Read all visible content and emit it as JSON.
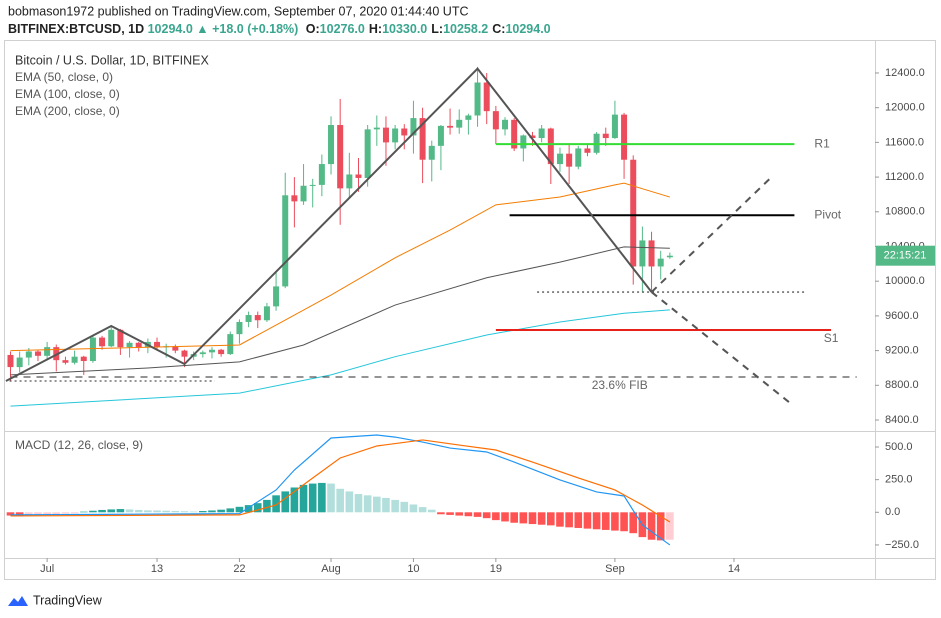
{
  "header": {
    "line1": "bobmason1972 published on TradingView.com, September 07, 2020 01:44:40 UTC",
    "symbol": "BITFINEX:BTCUSD, 1D",
    "price": "10294.0",
    "change": "▲ +18.0 (+0.18%)",
    "ohlc": [
      {
        "key": "O:",
        "value": "10276.0"
      },
      {
        "key": "H:",
        "value": "10330.0"
      },
      {
        "key": "L:",
        "value": "10258.2"
      },
      {
        "key": "C:",
        "value": "10294.0"
      }
    ]
  },
  "footer": {
    "brand": "TradingView"
  },
  "chart_data": [
    {
      "type": "candlestick",
      "title": "Bitcoin / U.S. Dollar, 1D, BITFINEX",
      "up_color": "#53b987",
      "down_color": "#eb4d5c",
      "countdown": "22:15:21",
      "badge_color": "#53b987",
      "x": [
        1,
        2,
        3,
        4,
        5,
        6,
        7,
        8,
        9,
        10,
        11,
        12,
        13,
        14,
        15,
        16,
        17,
        18,
        19,
        20,
        21,
        22,
        23,
        24,
        25,
        26,
        27,
        28,
        29,
        30,
        31,
        32,
        33,
        34,
        35,
        36,
        37,
        38,
        39,
        40,
        41,
        42,
        43,
        44,
        45,
        46,
        47,
        48,
        49,
        50,
        51,
        52,
        53,
        54,
        55,
        56,
        57,
        58,
        59,
        60,
        61,
        62,
        63,
        64,
        65,
        66,
        67,
        68,
        69,
        70,
        71,
        72,
        73
      ],
      "open": [
        9150,
        9010,
        9120,
        9190,
        9140,
        9240,
        9090,
        9060,
        9130,
        9080,
        9350,
        9250,
        9440,
        9240,
        9290,
        9240,
        9300,
        9240,
        9250,
        9200,
        9130,
        9160,
        9180,
        9210,
        9160,
        9390,
        9530,
        9610,
        9550,
        9710,
        9940,
        10990,
        10920,
        11100,
        11110,
        11350,
        11800,
        11070,
        11230,
        11190,
        11750,
        11770,
        11600,
        11760,
        11680,
        11880,
        11400,
        11560,
        11790,
        11770,
        11860,
        11910,
        12290,
        11960,
        11750,
        11860,
        11530,
        11680,
        11650,
        11760,
        11350,
        11470,
        11320,
        11530,
        11480,
        11700,
        11650,
        11920,
        11400,
        10170,
        10470,
        10170,
        10276
      ],
      "high": [
        9190,
        9190,
        9230,
        9210,
        9300,
        9270,
        9130,
        9200,
        9140,
        9380,
        9370,
        9480,
        9450,
        9310,
        9300,
        9340,
        9350,
        9280,
        9270,
        9210,
        9190,
        9200,
        9240,
        9220,
        9420,
        9560,
        9650,
        9650,
        9750,
        10100,
        11250,
        11200,
        11350,
        11180,
        11460,
        11900,
        12100,
        11480,
        11420,
        11800,
        11910,
        11900,
        11800,
        11810,
        12080,
        12000,
        11620,
        11800,
        11990,
        11980,
        11930,
        12470,
        12400,
        12020,
        11890,
        11880,
        11690,
        11720,
        11800,
        11770,
        11540,
        11590,
        11560,
        11590,
        11720,
        11770,
        12080,
        11940,
        11450,
        10630,
        10570,
        10350,
        10330
      ],
      "low": [
        8850,
        8950,
        9030,
        9080,
        9090,
        8960,
        9040,
        9040,
        8920,
        9060,
        9210,
        9240,
        9150,
        9120,
        9190,
        9170,
        9210,
        9120,
        9170,
        9010,
        9090,
        9120,
        9110,
        9130,
        9150,
        9280,
        9470,
        9460,
        9530,
        9660,
        9920,
        10620,
        10880,
        10850,
        10980,
        11230,
        10650,
        10950,
        11030,
        11090,
        11560,
        11330,
        11520,
        11520,
        11470,
        11130,
        11150,
        11280,
        11690,
        11700,
        11690,
        11780,
        11810,
        11580,
        11680,
        11500,
        11380,
        11560,
        11600,
        11120,
        11260,
        11120,
        11290,
        11440,
        11460,
        11560,
        11640,
        11180,
        9960,
        9870,
        9880,
        10020,
        10258.2
      ],
      "close": [
        9010,
        9120,
        9190,
        9140,
        9240,
        9090,
        9060,
        9130,
        9080,
        9350,
        9250,
        9440,
        9240,
        9290,
        9240,
        9300,
        9240,
        9250,
        9200,
        9130,
        9160,
        9180,
        9210,
        9160,
        9390,
        9530,
        9610,
        9550,
        9710,
        9940,
        10990,
        10920,
        11100,
        11110,
        11350,
        11800,
        11070,
        11230,
        11190,
        11750,
        11770,
        11600,
        11760,
        11680,
        11880,
        11400,
        11560,
        11790,
        11770,
        11860,
        11910,
        12290,
        11960,
        11750,
        11860,
        11530,
        11680,
        11650,
        11760,
        11350,
        11470,
        11320,
        11530,
        11480,
        11700,
        11650,
        11920,
        11400,
        10170,
        10470,
        10170,
        10260,
        10294
      ],
      "series": [
        {
          "name": "EMA (50, close, 0)",
          "color": "#f57c00",
          "x": [
            1,
            26,
            30,
            36,
            43,
            49,
            54,
            61,
            67,
            68,
            73
          ],
          "values": [
            9200,
            9265,
            9495,
            9840,
            10270,
            10590,
            10880,
            10970,
            11110,
            11130,
            10970
          ]
        },
        {
          "name": "EMA (100, close, 0)",
          "color": "#555555",
          "x": [
            1,
            16,
            26,
            33,
            43,
            53,
            61,
            68,
            73
          ],
          "values": [
            8920,
            9000,
            9070,
            9265,
            9725,
            10040,
            10220,
            10395,
            10380
          ]
        },
        {
          "name": "EMA (200, close, 0)",
          "color": "#26c6da",
          "x": [
            1,
            26,
            36,
            43,
            53,
            61,
            68,
            73
          ],
          "values": [
            8560,
            8710,
            8920,
            9130,
            9380,
            9530,
            9630,
            9670
          ]
        }
      ],
      "levels": [
        {
          "label": "R1",
          "value": 11580,
          "x": [
            54,
            86.6
          ],
          "color": "#33dd33",
          "style": "solid"
        },
        {
          "label": "Pivot",
          "value": 10760,
          "x": [
            55.5,
            86.6
          ],
          "color": "#000000",
          "style": "solid"
        },
        {
          "label": "S1",
          "value": 9437,
          "x": [
            54,
            90.6
          ],
          "color": "#e8201a",
          "style": "solid"
        },
        {
          "value": 9875,
          "x": [
            58.5,
            87.7
          ],
          "color": "#555555",
          "style": "dotted"
        },
        {
          "label": "23.6% FIB",
          "value": 8896,
          "x": [
            1,
            93.4
          ],
          "color": "#555555",
          "style": "dashed"
        },
        {
          "value": 8850,
          "x": [
            0.9,
            23.3
          ],
          "color": "#555555",
          "style": "dotted"
        }
      ],
      "trendlines": [
        {
          "color": "#555555",
          "style": "solid",
          "points": [
            [
              0.5,
              8850
            ],
            [
              12,
              9484
            ],
            [
              20,
              9045
            ],
            [
              52,
              12450
            ],
            [
              71,
              9875
            ]
          ]
        },
        {
          "color": "#555555",
          "style": "dashed",
          "points": [
            [
              71,
              9875
            ],
            [
              86,
              8607
            ]
          ]
        },
        {
          "color": "#555555",
          "style": "dashed",
          "points": [
            [
              71,
              9875
            ],
            [
              84,
              11190
            ]
          ]
        }
      ],
      "ylim": [
        8285,
        12780
      ],
      "yticks": [
        {
          "value": 8400,
          "label": "8400.0"
        },
        {
          "value": 8800,
          "label": "8800.0"
        },
        {
          "value": 9200,
          "label": "9200.0"
        },
        {
          "value": 9600,
          "label": "9600.0"
        },
        {
          "value": 10000,
          "label": "10000.0"
        },
        {
          "value": 10400,
          "label": "10400.0"
        },
        {
          "value": 10800,
          "label": "10800.0"
        },
        {
          "value": 11200,
          "label": "11200.0"
        },
        {
          "value": 11600,
          "label": "11600.0"
        },
        {
          "value": 12000,
          "label": "12000.0"
        },
        {
          "value": 12400,
          "label": "12400.0"
        }
      ],
      "xlim": [
        0.4,
        95.4
      ]
    },
    {
      "type": "macd",
      "title": "MACD (12, 26, close, 9)",
      "x": [
        1,
        2,
        3,
        4,
        5,
        6,
        7,
        8,
        9,
        10,
        11,
        12,
        13,
        14,
        15,
        16,
        17,
        18,
        19,
        20,
        21,
        22,
        23,
        24,
        25,
        26,
        27,
        28,
        29,
        30,
        31,
        32,
        33,
        34,
        35,
        36,
        37,
        38,
        39,
        40,
        41,
        42,
        43,
        44,
        45,
        46,
        47,
        48,
        49,
        50,
        51,
        52,
        53,
        54,
        55,
        56,
        57,
        58,
        59,
        60,
        61,
        62,
        63,
        64,
        65,
        66,
        67,
        68,
        69,
        70,
        71,
        72,
        73
      ],
      "histogram": [
        -25,
        -30,
        -28,
        -22,
        -18,
        -15,
        -10,
        -8,
        5,
        12,
        18,
        22,
        25,
        22,
        18,
        15,
        14,
        12,
        10,
        8,
        6,
        10,
        14,
        20,
        30,
        42,
        55,
        70,
        95,
        130,
        160,
        190,
        210,
        220,
        225,
        220,
        180,
        160,
        140,
        130,
        120,
        110,
        95,
        80,
        60,
        40,
        20,
        -15,
        -20,
        -25,
        -30,
        -35,
        -45,
        -60,
        -70,
        -80,
        -85,
        -90,
        -95,
        -100,
        -110,
        -115,
        -120,
        -125,
        -130,
        -135,
        -140,
        -145,
        -160,
        -190,
        -210,
        -215,
        -210
      ],
      "histogram_colors": {
        "rise_up": "#26a69a",
        "fall_up": "#b2dfdb",
        "fall_down": "#ff5252",
        "rise_down": "#ffcdd2"
      },
      "series": [
        {
          "color": "#2196f3",
          "x": [
            1,
            26,
            30,
            32,
            36,
            41,
            43,
            46,
            49,
            53,
            56,
            61,
            65,
            68,
            70,
            73
          ],
          "values": [
            -20,
            -10,
            171,
            324,
            569,
            592,
            576,
            538,
            492,
            462,
            385,
            248,
            156,
            125,
            -97,
            -250
          ]
        },
        {
          "color": "#ff6d00",
          "x": [
            1,
            26,
            30,
            34,
            37,
            41,
            46,
            50,
            54,
            58,
            63,
            67,
            70,
            73
          ],
          "values": [
            -28,
            -20,
            56,
            263,
            416,
            508,
            554,
            515,
            477,
            385,
            263,
            171,
            56,
            -74
          ]
        }
      ],
      "ylim": [
        -350,
        615
      ],
      "yticks": [
        {
          "value": 500,
          "label": "500.0"
        },
        {
          "value": 250,
          "label": "250.0"
        },
        {
          "value": 0,
          "label": "0.0"
        },
        {
          "value": -250,
          "label": "−250.0"
        }
      ],
      "xlim": [
        0.4,
        95.4
      ],
      "xticks": [
        {
          "value": 5,
          "label": "Jul"
        },
        {
          "value": 17,
          "label": "13"
        },
        {
          "value": 26,
          "label": "22"
        },
        {
          "value": 36,
          "label": "Aug"
        },
        {
          "value": 45,
          "label": "10"
        },
        {
          "value": 54,
          "label": "19"
        },
        {
          "value": 67,
          "label": "Sep"
        },
        {
          "value": 80,
          "label": "14"
        }
      ]
    }
  ]
}
